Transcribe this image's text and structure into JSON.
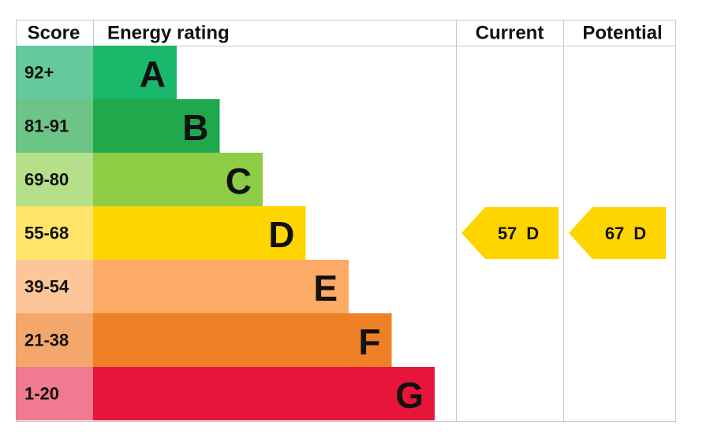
{
  "header": {
    "score": "Score",
    "rating": "Energy rating",
    "current": "Current",
    "potential": "Potential"
  },
  "rows": [
    {
      "score": "92+",
      "letter": "A",
      "color": "#19b86b",
      "score_color": "#66c99c"
    },
    {
      "score": "81-91",
      "letter": "B",
      "color": "#1fa84c",
      "score_color": "#6cc486"
    },
    {
      "score": "69-80",
      "letter": "C",
      "color": "#8dcd45",
      "score_color": "#b6df89"
    },
    {
      "score": "55-68",
      "letter": "D",
      "color": "#ffd500",
      "score_color": "#ffe46c"
    },
    {
      "score": "39-54",
      "letter": "E",
      "color": "#fcaa65",
      "score_color": "#fdc699"
    },
    {
      "score": "21-38",
      "letter": "F",
      "color": "#ee8025",
      "score_color": "#f3a76b"
    },
    {
      "score": "1-20",
      "letter": "G",
      "color": "#e8153b",
      "score_color": "#f07a90"
    }
  ],
  "current": {
    "score": 57,
    "rating": "D",
    "color": "#ffd500"
  },
  "potential": {
    "score": 67,
    "rating": "D",
    "color": "#ffd500"
  }
}
